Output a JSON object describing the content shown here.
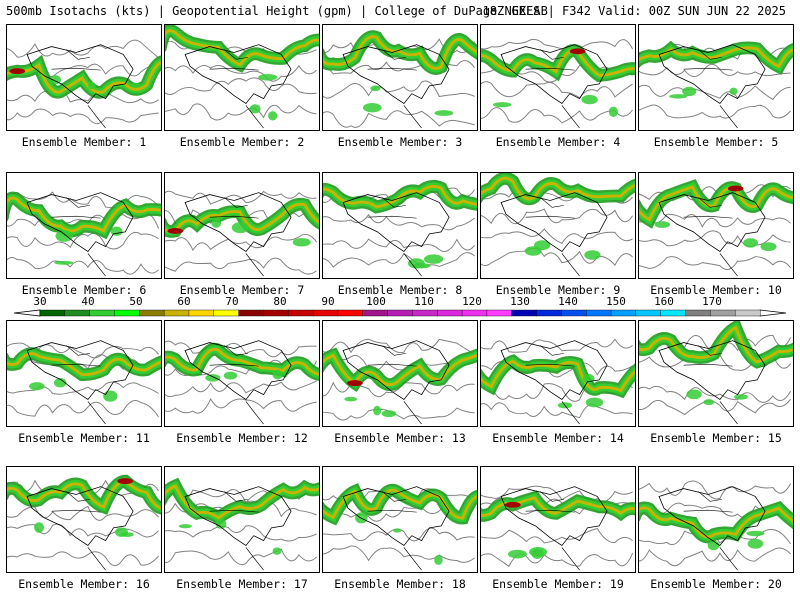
{
  "header": {
    "left": "500mb Isotachs (kts) | Geopotential Height (gpm) | College of DuPage NEXLAB",
    "right": "18Z GEFS | F342 Valid: 00Z SUN JUN 22 2025"
  },
  "members": [
    {
      "label": "Ensemble Member: 1"
    },
    {
      "label": "Ensemble Member: 2"
    },
    {
      "label": "Ensemble Member: 3"
    },
    {
      "label": "Ensemble Member: 4"
    },
    {
      "label": "Ensemble Member: 5"
    },
    {
      "label": "Ensemble Member: 6"
    },
    {
      "label": "Ensemble Member: 7"
    },
    {
      "label": "Ensemble Member: 8"
    },
    {
      "label": "Ensemble Member: 9"
    },
    {
      "label": "Ensemble Member: 10"
    },
    {
      "label": "Ensemble Member: 11"
    },
    {
      "label": "Ensemble Member: 12"
    },
    {
      "label": "Ensemble Member: 13"
    },
    {
      "label": "Ensemble Member: 14"
    },
    {
      "label": "Ensemble Member: 15"
    },
    {
      "label": "Ensemble Member: 16"
    },
    {
      "label": "Ensemble Member: 17"
    },
    {
      "label": "Ensemble Member: 18"
    },
    {
      "label": "Ensemble Member: 19"
    },
    {
      "label": "Ensemble Member: 20"
    }
  ],
  "colorbar": {
    "ticks": [
      "30",
      "40",
      "50",
      "60",
      "70",
      "80",
      "90",
      "100",
      "110",
      "120",
      "130",
      "140",
      "150",
      "160",
      "170"
    ],
    "colors": [
      "#006400",
      "#1e8c1e",
      "#32cd32",
      "#00ff00",
      "#8b7d00",
      "#c8b400",
      "#ffd700",
      "#ffff00",
      "#8b0000",
      "#a50000",
      "#c80000",
      "#e60000",
      "#ff0000",
      "#a0148c",
      "#b41eb4",
      "#c828c8",
      "#dc28dc",
      "#f032f0",
      "#ff3cff",
      "#0000b4",
      "#0028dc",
      "#0050f0",
      "#0078ff",
      "#00a0ff",
      "#00c8ff",
      "#00e6ff",
      "#808080",
      "#a0a0a0",
      "#c8c8c8"
    ]
  }
}
